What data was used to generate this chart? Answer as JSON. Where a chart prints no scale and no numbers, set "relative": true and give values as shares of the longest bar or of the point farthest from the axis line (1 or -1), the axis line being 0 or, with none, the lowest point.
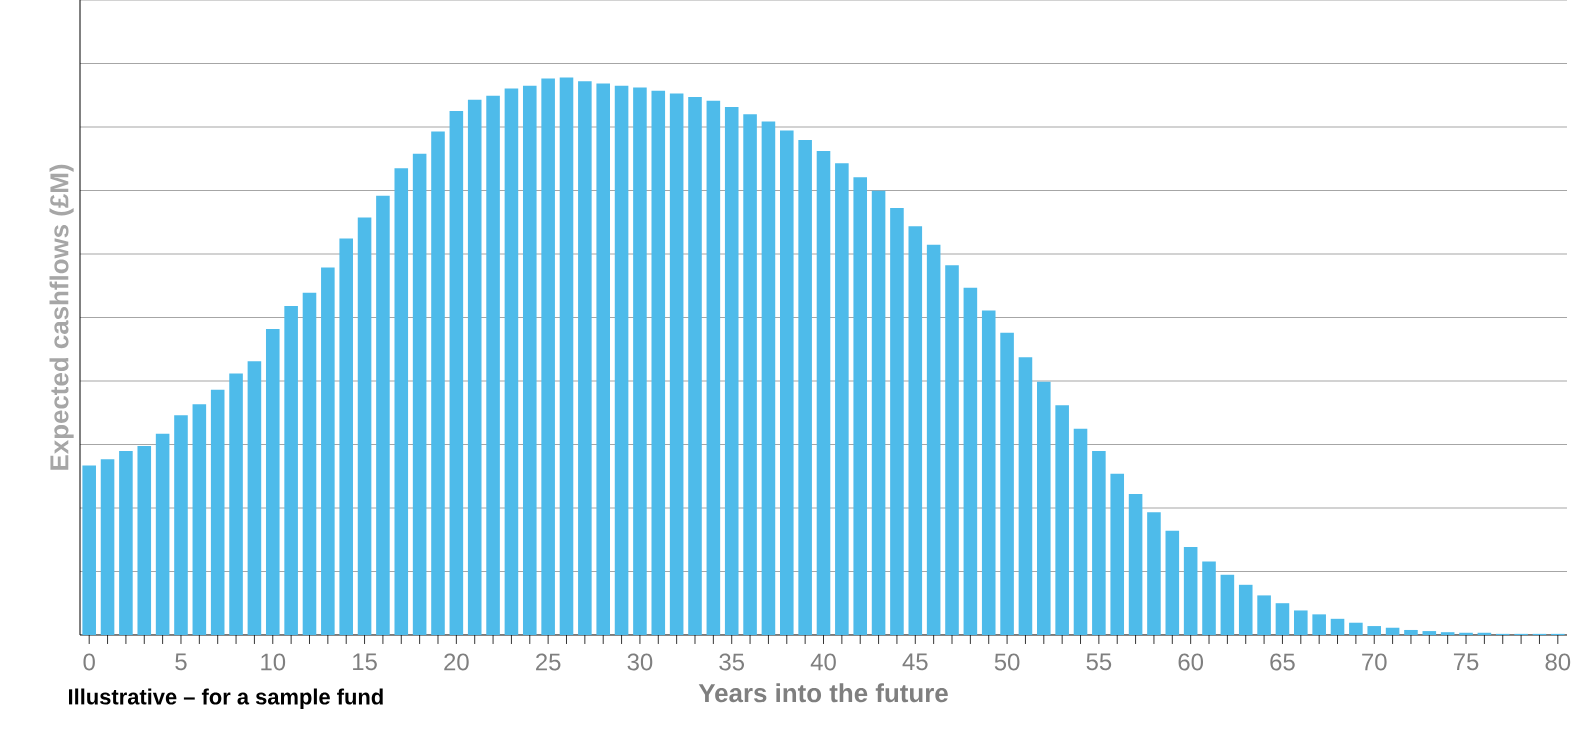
{
  "chart_data": {
    "type": "bar",
    "relative": true,
    "ylabel": "Expected cashflows (£M)",
    "xlabel": "Years into the future",
    "categories": [
      "0",
      null,
      null,
      null,
      null,
      "5",
      null,
      null,
      null,
      null,
      "10",
      null,
      null,
      null,
      null,
      "15",
      null,
      null,
      null,
      null,
      "20",
      null,
      null,
      null,
      null,
      "25",
      null,
      null,
      null,
      null,
      "30",
      null,
      null,
      null,
      null,
      "35",
      null,
      null,
      null,
      null,
      "40",
      null,
      null,
      null,
      null,
      "45",
      null,
      null,
      null,
      null,
      "50",
      null,
      null,
      null,
      null,
      "55",
      null,
      null,
      null,
      null,
      "60",
      null,
      null,
      null,
      null,
      "65",
      null,
      null,
      null,
      null,
      "70",
      null,
      null,
      null,
      null,
      "75",
      null,
      null,
      null,
      null,
      "80"
    ],
    "values": [
      0.304,
      0.315,
      0.33,
      0.339,
      0.361,
      0.394,
      0.414,
      0.44,
      0.469,
      0.491,
      0.549,
      0.59,
      0.614,
      0.659,
      0.711,
      0.749,
      0.788,
      0.837,
      0.863,
      0.903,
      0.94,
      0.96,
      0.967,
      0.98,
      0.985,
      0.998,
      1,
      0.993,
      0.989,
      0.985,
      0.982,
      0.976,
      0.971,
      0.965,
      0.958,
      0.947,
      0.934,
      0.921,
      0.905,
      0.888,
      0.868,
      0.846,
      0.821,
      0.797,
      0.766,
      0.733,
      0.7,
      0.663,
      0.623,
      0.582,
      0.542,
      0.498,
      0.454,
      0.412,
      0.37,
      0.33,
      0.289,
      0.253,
      0.22,
      0.187,
      0.158,
      0.132,
      0.108,
      0.09,
      0.071,
      0.057,
      0.044,
      0.037,
      0.029,
      0.022,
      0.016,
      0.013,
      0.009,
      0.007,
      0.005,
      0.004,
      0.004,
      0.002,
      0.002,
      0.002,
      0.002
    ],
    "color": "#4ebbea",
    "grid": "y",
    "annotations": [
      "Illustrative – for a sample fund"
    ]
  }
}
